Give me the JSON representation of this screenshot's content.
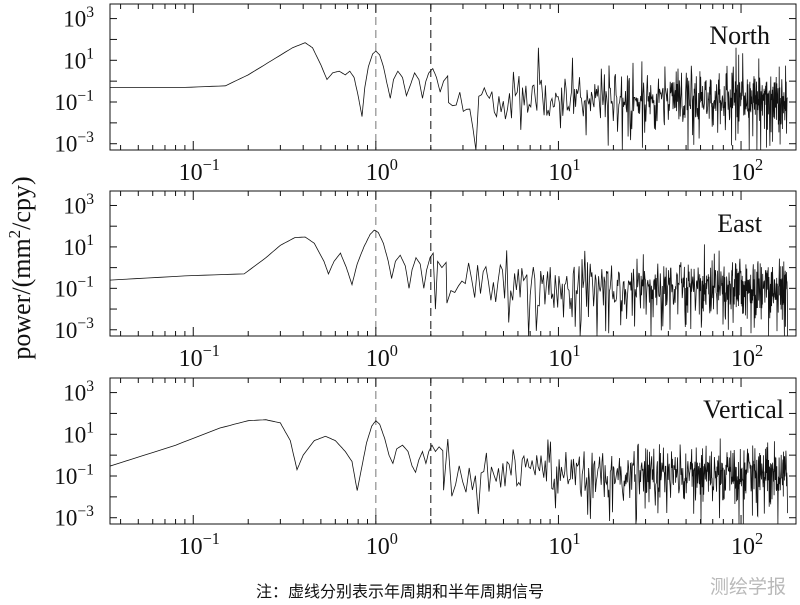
{
  "chart_data": {
    "type": "line",
    "ylabel_parts": [
      "power/(mm",
      "2",
      "/cpy)"
    ],
    "xscale": "log",
    "yscale": "log",
    "xlim": [
      0.035,
      200
    ],
    "ylim": [
      0.0005,
      5000
    ],
    "xticks": [
      {
        "value": 0.1,
        "base": "10",
        "exp": "−1"
      },
      {
        "value": 1,
        "base": "10",
        "exp": "0"
      },
      {
        "value": 10,
        "base": "10",
        "exp": "1"
      },
      {
        "value": 100,
        "base": "10",
        "exp": "2"
      }
    ],
    "yticks": [
      {
        "value": 1000,
        "base": "10",
        "exp": "3"
      },
      {
        "value": 10,
        "base": "10",
        "exp": "1"
      },
      {
        "value": 0.1,
        "base": "10",
        "exp": "−1"
      },
      {
        "value": 0.001,
        "base": "10",
        "exp": "−3"
      }
    ],
    "reference_lines": [
      {
        "x": 1,
        "style": "dashed-gray"
      },
      {
        "x": 2,
        "style": "dashed-black"
      }
    ],
    "panels": [
      {
        "name": "North",
        "low_freq_curve": [
          [
            0.035,
            0.5
          ],
          [
            0.09,
            0.5
          ],
          [
            0.15,
            0.6
          ],
          [
            0.2,
            2
          ],
          [
            0.27,
            10
          ],
          [
            0.35,
            40
          ],
          [
            0.41,
            70
          ],
          [
            0.45,
            40
          ],
          [
            0.5,
            6
          ],
          [
            0.54,
            1.2
          ],
          [
            0.58,
            2.5
          ],
          [
            0.63,
            3
          ],
          [
            0.68,
            2
          ],
          [
            0.72,
            3
          ],
          [
            0.76,
            1.5
          ],
          [
            0.8,
            0.2
          ],
          [
            0.84,
            0.02
          ],
          [
            0.87,
            0.5
          ],
          [
            0.91,
            5
          ],
          [
            0.96,
            20
          ],
          [
            1.0,
            28
          ],
          [
            1.05,
            18
          ],
          [
            1.1,
            5
          ],
          [
            1.15,
            0.8
          ],
          [
            1.2,
            0.15
          ],
          [
            1.25,
            1.2
          ],
          [
            1.32,
            3
          ],
          [
            1.4,
            1.5
          ],
          [
            1.47,
            0.2
          ],
          [
            1.55,
            0.7
          ],
          [
            1.63,
            2.5
          ],
          [
            1.72,
            1.2
          ],
          [
            1.8,
            0.15
          ],
          [
            1.88,
            1
          ],
          [
            1.95,
            2.5
          ],
          [
            2.05,
            4
          ],
          [
            2.15,
            1.5
          ],
          [
            2.25,
            0.3
          ],
          [
            2.35,
            1
          ],
          [
            2.5,
            2
          ]
        ],
        "noise_start": 2.5,
        "noise_level": 0.15,
        "noise_spread": 1.3,
        "seed": 11
      },
      {
        "name": "East",
        "low_freq_curve": [
          [
            0.035,
            0.25
          ],
          [
            0.09,
            0.4
          ],
          [
            0.19,
            0.5
          ],
          [
            0.25,
            3
          ],
          [
            0.3,
            12
          ],
          [
            0.36,
            28
          ],
          [
            0.41,
            30
          ],
          [
            0.46,
            15
          ],
          [
            0.52,
            2
          ],
          [
            0.55,
            0.5
          ],
          [
            0.59,
            2
          ],
          [
            0.64,
            5
          ],
          [
            0.69,
            1
          ],
          [
            0.74,
            0.15
          ],
          [
            0.79,
            1.5
          ],
          [
            0.86,
            10
          ],
          [
            0.93,
            40
          ],
          [
            0.98,
            65
          ],
          [
            1.03,
            50
          ],
          [
            1.1,
            15
          ],
          [
            1.17,
            2
          ],
          [
            1.22,
            0.3
          ],
          [
            1.28,
            2
          ],
          [
            1.36,
            4
          ],
          [
            1.45,
            1.2
          ],
          [
            1.52,
            0.1
          ],
          [
            1.58,
            0.8
          ],
          [
            1.66,
            3
          ],
          [
            1.75,
            1.5
          ],
          [
            1.83,
            0.1
          ],
          [
            1.9,
            0.8
          ],
          [
            1.98,
            3
          ],
          [
            2.06,
            5
          ],
          [
            2.12,
            0.01
          ],
          [
            2.18,
            2
          ],
          [
            2.3,
            1
          ],
          [
            2.45,
            2
          ]
        ],
        "noise_start": 2.45,
        "noise_level": 0.12,
        "noise_spread": 1.3,
        "seed": 23
      },
      {
        "name": "Vertical",
        "low_freq_curve": [
          [
            0.035,
            0.3
          ],
          [
            0.08,
            3
          ],
          [
            0.14,
            20
          ],
          [
            0.2,
            45
          ],
          [
            0.25,
            50
          ],
          [
            0.3,
            35
          ],
          [
            0.34,
            5
          ],
          [
            0.37,
            0.2
          ],
          [
            0.4,
            1
          ],
          [
            0.46,
            5
          ],
          [
            0.53,
            8
          ],
          [
            0.6,
            5
          ],
          [
            0.68,
            1.5
          ],
          [
            0.74,
            0.5
          ],
          [
            0.79,
            0.02
          ],
          [
            0.84,
            0.3
          ],
          [
            0.89,
            4
          ],
          [
            0.95,
            25
          ],
          [
            1.0,
            45
          ],
          [
            1.05,
            30
          ],
          [
            1.12,
            6
          ],
          [
            1.18,
            1
          ],
          [
            1.24,
            0.4
          ],
          [
            1.3,
            2
          ],
          [
            1.4,
            3
          ],
          [
            1.5,
            1.5
          ],
          [
            1.58,
            0.3
          ],
          [
            1.65,
            0.15
          ],
          [
            1.72,
            0.6
          ],
          [
            1.8,
            1.5
          ],
          [
            1.88,
            0.4
          ],
          [
            1.95,
            1.5
          ],
          [
            2.03,
            3
          ],
          [
            2.12,
            1.5
          ],
          [
            2.22,
            2.5
          ],
          [
            2.35,
            1.5
          ]
        ],
        "noise_start": 2.35,
        "noise_level": 0.12,
        "noise_spread": 1.25,
        "seed": 37
      }
    ]
  },
  "caption": "注：虚线分别表示年周期和半年周期信号",
  "watermark": "测绘学报"
}
